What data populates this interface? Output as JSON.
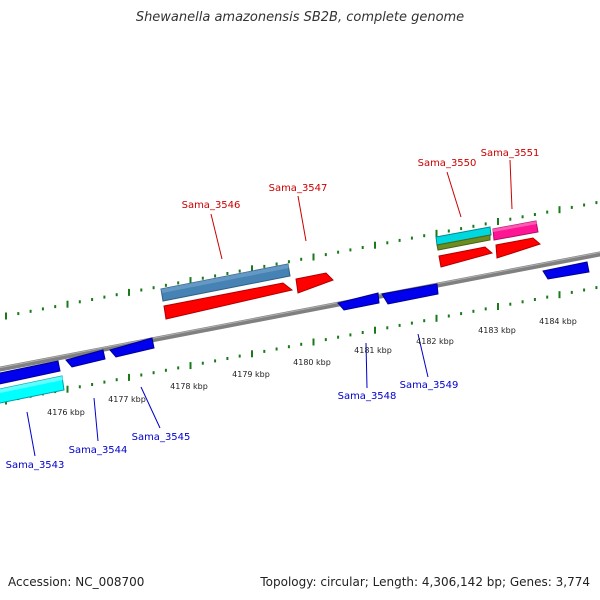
{
  "title": "Shewanella amazonensis SB2B, complete genome",
  "footer": {
    "accession": "Accession: NC_008700",
    "topology": "Topology: circular; Length: 4,306,142 bp; Genes: 3,774"
  },
  "kbp_labels": [
    "4176 kbp",
    "4177 kbp",
    "4178 kbp",
    "4179 kbp",
    "4180 kbp",
    "4181 kbp",
    "4182 kbp",
    "4183 kbp",
    "4184 kbp"
  ],
  "top_labels": [
    "Sama_3546",
    "Sama_3547",
    "Sama_3550",
    "Sama_3551"
  ],
  "bottom_labels": [
    "Sama_3543",
    "Sama_3544",
    "Sama_3545",
    "Sama_3548",
    "Sama_3549"
  ],
  "colors": {
    "backbone": "#808080",
    "tick": "#1a7a1a",
    "forward_gene": "#ff0000",
    "reverse_gene": "#0000ee",
    "top_label": "#cc0000",
    "bottom_label": "#0000cc",
    "steelblue_feature": "#4682b4",
    "cyan_feature": "#00d8e0",
    "olive_feature": "#6b8e23",
    "pink_feature": "#ff1493"
  }
}
